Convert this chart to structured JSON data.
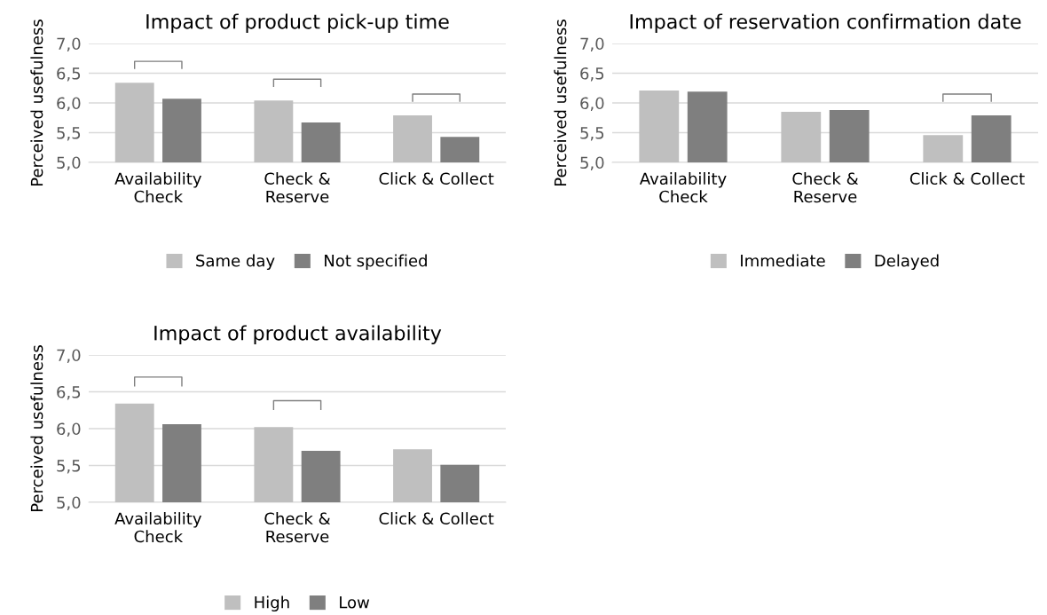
{
  "chart_data": [
    {
      "type": "bar",
      "title": "Impact of product pick-up time",
      "ylabel": "Perceived usefulness",
      "categories": [
        "Availability\nCheck",
        "Check &\nReserve",
        "Click & Collect"
      ],
      "series": [
        {
          "name": "Same day",
          "color": "#bfbfbf",
          "values": [
            6.34,
            6.04,
            5.79
          ]
        },
        {
          "name": "Not specified",
          "color": "#7f7f7f",
          "values": [
            6.07,
            5.67,
            5.43
          ]
        }
      ],
      "ylim": [
        5,
        7
      ],
      "yticks": [
        {
          "value": 5,
          "label": "5,0"
        },
        {
          "value": 5.5,
          "label": "5,5"
        },
        {
          "value": 6,
          "label": "6,0"
        },
        {
          "value": 6.5,
          "label": "6,5"
        },
        {
          "value": 7,
          "label": "7,0"
        }
      ],
      "grid": "y",
      "legend": "bottom"
    },
    {
      "type": "bar",
      "title": "Impact of reservation confirmation date",
      "ylabel": "Perceived usefulness",
      "categories": [
        "Availability\nCheck",
        "Check &\nReserve",
        "Click & Collect"
      ],
      "series": [
        {
          "name": "Immediate",
          "color": "#bfbfbf",
          "values": [
            6.21,
            5.85,
            5.46
          ]
        },
        {
          "name": "Delayed",
          "color": "#7f7f7f",
          "values": [
            6.19,
            5.88,
            5.79
          ]
        }
      ],
      "ylim": [
        5,
        7
      ],
      "yticks": [
        {
          "value": 5,
          "label": "5,0"
        },
        {
          "value": 5.5,
          "label": "5,5"
        },
        {
          "value": 6,
          "label": "6,0"
        },
        {
          "value": 6.5,
          "label": "6,5"
        },
        {
          "value": 7,
          "label": "7,0"
        }
      ],
      "grid": "y",
      "legend": "bottom"
    },
    {
      "type": "bar",
      "title": "Impact of product availability",
      "ylabel": "Perceived usefulness",
      "categories": [
        "Availability\nCheck",
        "Check &\nReserve",
        "Click & Collect"
      ],
      "series": [
        {
          "name": "High",
          "color": "#bfbfbf",
          "values": [
            6.34,
            6.02,
            5.72
          ]
        },
        {
          "name": "Low",
          "color": "#7f7f7f",
          "values": [
            6.06,
            5.7,
            5.51
          ]
        }
      ],
      "ylim": [
        5,
        7
      ],
      "yticks": [
        {
          "value": 5,
          "label": "5,0"
        },
        {
          "value": 5.5,
          "label": "5,5"
        },
        {
          "value": 6,
          "label": "6,0"
        },
        {
          "value": 6.5,
          "label": "6,5"
        },
        {
          "value": 7,
          "label": "7,0"
        }
      ],
      "grid": "y",
      "legend": "bottom"
    }
  ]
}
